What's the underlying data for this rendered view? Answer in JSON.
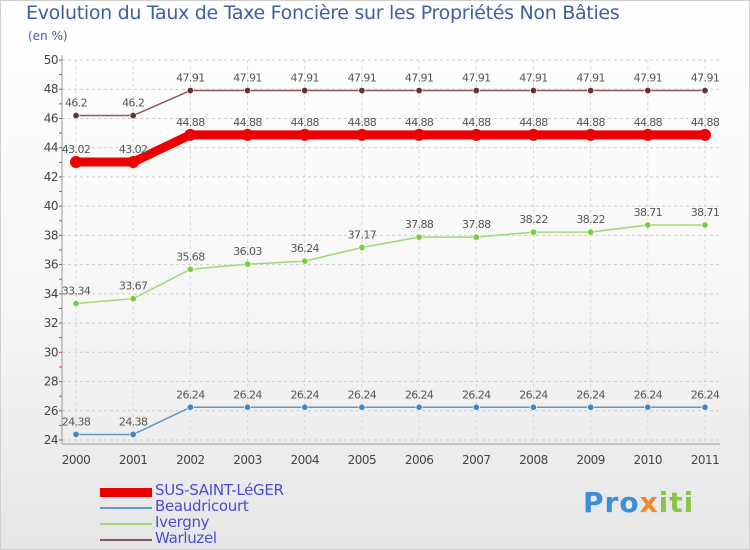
{
  "title": "Evolution du Taux de Taxe Foncière sur les Propriétés Non Bâties",
  "subtitle": "(en %)",
  "logo": {
    "part1": "Pro",
    "part2": "x",
    "part3": "iti",
    "text": "Proxiti"
  },
  "chart_data": {
    "type": "line",
    "title": "Evolution du Taux de Taxe Foncière sur les Propriétés Non Bâties",
    "ylabel": "(en %)",
    "xlabel": "",
    "categories": [
      "2000",
      "2001",
      "2002",
      "2003",
      "2004",
      "2005",
      "2006",
      "2007",
      "2008",
      "2009",
      "2010",
      "2011"
    ],
    "ylim": [
      24,
      50
    ],
    "yticks": [
      24,
      26,
      28,
      30,
      32,
      34,
      36,
      38,
      40,
      42,
      44,
      46,
      48,
      50
    ],
    "grid": true,
    "legend_position": "bottom-left",
    "series": [
      {
        "name": "SUS-SAINT-LéGER",
        "color": "#ee0000",
        "width": 9,
        "values": [
          43.02,
          43.02,
          44.88,
          44.88,
          44.88,
          44.88,
          44.88,
          44.88,
          44.88,
          44.88,
          44.88,
          44.88
        ],
        "labels": [
          "43.02",
          "43.02",
          "44.88",
          "44.88",
          "44.88",
          "44.88",
          "44.88",
          "44.88",
          "44.88",
          "44.88",
          "44.88",
          "44.88"
        ]
      },
      {
        "name": "Beaudricourt",
        "color": "#5f98c4",
        "marker": "#3f86c4",
        "width": 1.5,
        "values": [
          24.38,
          24.38,
          26.24,
          26.24,
          26.24,
          26.24,
          26.24,
          26.24,
          26.24,
          26.24,
          26.24,
          26.24
        ],
        "labels": [
          "24.38",
          "24.38",
          "26.24",
          "26.24",
          "26.24",
          "26.24",
          "26.24",
          "26.24",
          "26.24",
          "26.24",
          "26.24",
          "26.24"
        ]
      },
      {
        "name": "Ivergny",
        "color": "#9fd977",
        "marker": "#7ccb3e",
        "width": 1.5,
        "values": [
          33.34,
          33.67,
          35.68,
          36.03,
          36.24,
          37.17,
          37.88,
          37.88,
          38.22,
          38.22,
          38.71,
          38.71
        ],
        "labels": [
          "33.34",
          "33.67",
          "35.68",
          "36.03",
          "36.24",
          "37.17",
          "37.88",
          "37.88",
          "38.22",
          "38.22",
          "38.71",
          "38.71"
        ]
      },
      {
        "name": "Warluzel",
        "color": "#8a5a5a",
        "marker": "#6b3131",
        "width": 1.5,
        "values": [
          46.2,
          46.2,
          47.91,
          47.91,
          47.91,
          47.91,
          47.91,
          47.91,
          47.91,
          47.91,
          47.91,
          47.91
        ],
        "labels": [
          "46.2",
          "46.2",
          "47.91",
          "47.91",
          "47.91",
          "47.91",
          "47.91",
          "47.91",
          "47.91",
          "47.91",
          "47.91",
          "47.91"
        ]
      }
    ]
  }
}
